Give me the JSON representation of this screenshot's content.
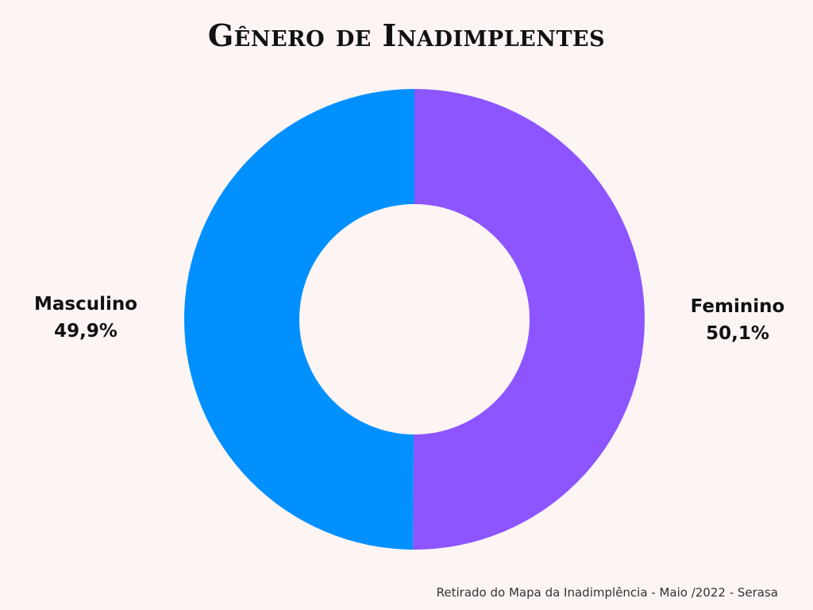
{
  "colors": {
    "background": "#fdf5f4",
    "masculino": "#0290ff",
    "feminino": "#8c55ff"
  },
  "chart_data": {
    "type": "pie",
    "style": "donut",
    "title": "Gênero de Inadimplentes",
    "slices": [
      {
        "label": "Feminino",
        "value": 50.1,
        "display": "50,1%",
        "color": "#8c55ff"
      },
      {
        "label": "Masculino",
        "value": 49.9,
        "display": "49,9%",
        "color": "#0290ff"
      }
    ]
  },
  "footer": {
    "source": "Retirado do Mapa da Inadimplência - Maio /2022 - Serasa"
  }
}
